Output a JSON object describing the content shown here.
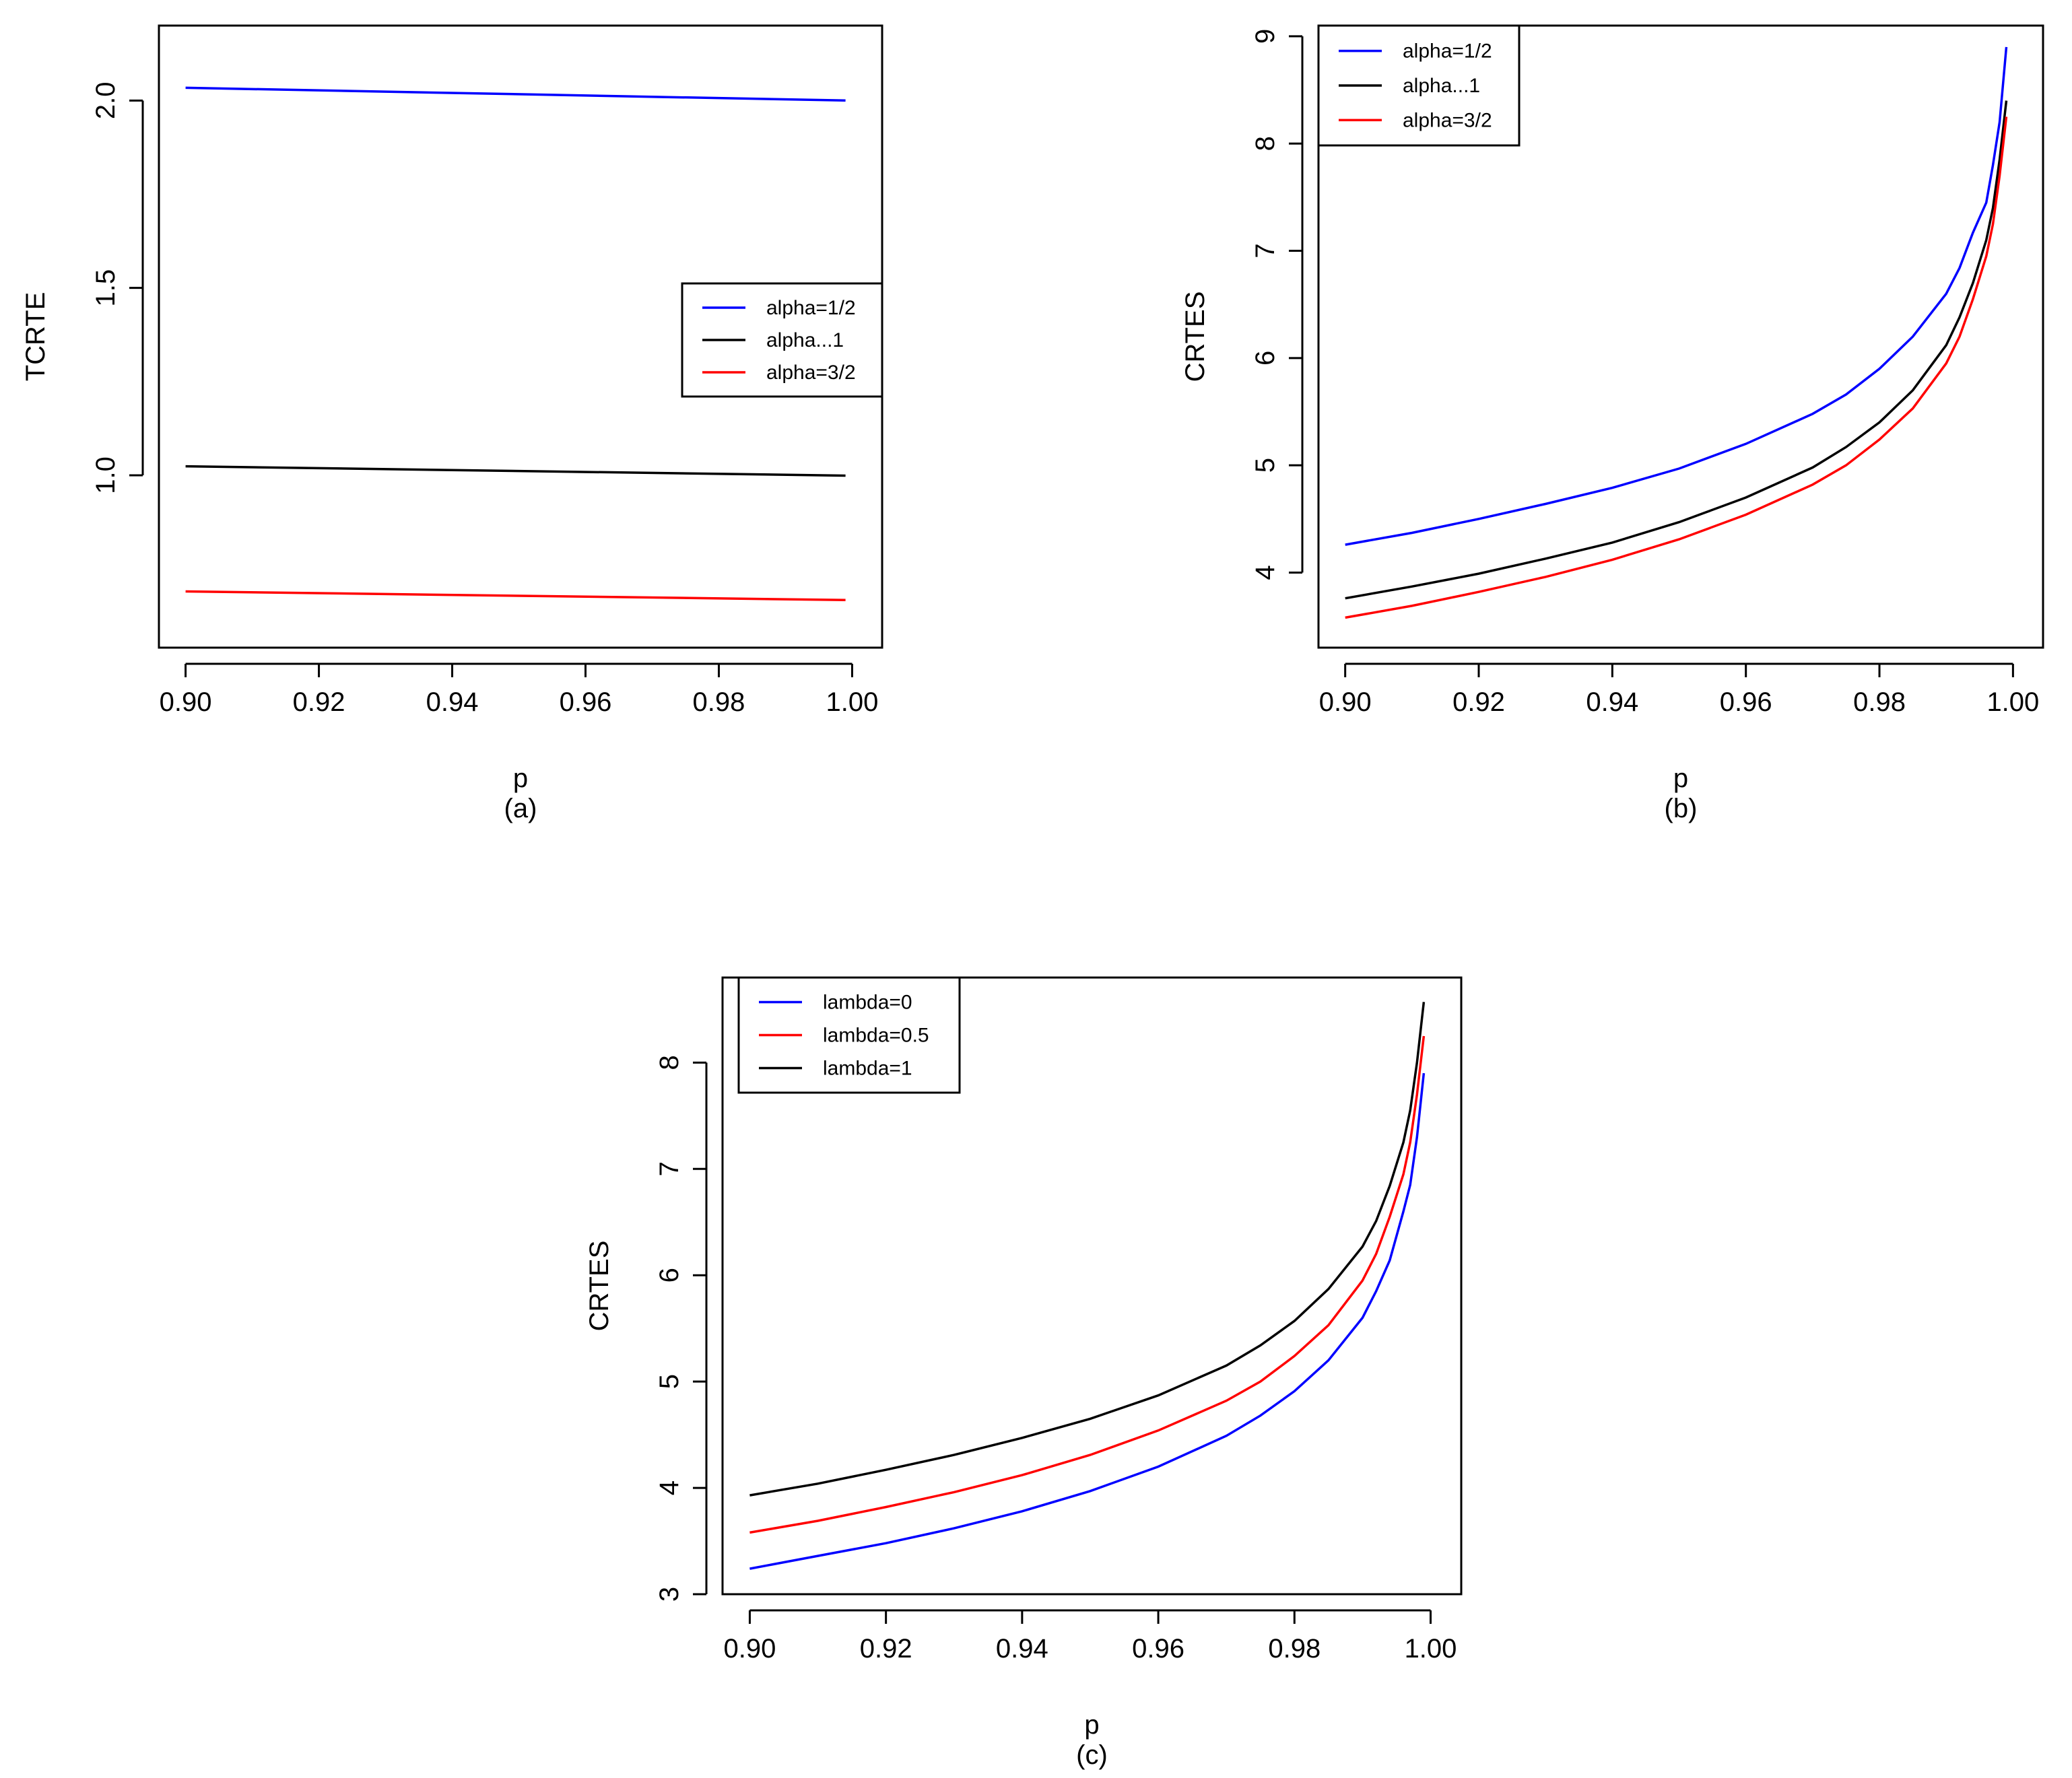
{
  "chart_data": [
    {
      "id": "a",
      "type": "line",
      "panel_label": "(a)",
      "xlabel": "p",
      "ylabel": "TCRTE",
      "xlim": [
        0.896,
        1.0045
      ],
      "ylim": [
        0.54,
        2.2
      ],
      "xticks": [
        0.9,
        0.92,
        0.94,
        0.96,
        0.98,
        1.0
      ],
      "xtick_labels": [
        "0.90",
        "0.92",
        "0.94",
        "0.96",
        "0.98",
        "1.00"
      ],
      "yticks": [
        1.0,
        1.5,
        2.0
      ],
      "ytick_labels": [
        "1.0",
        "1.5",
        "2.0"
      ],
      "legend_position": "right",
      "x": [
        0.9,
        0.999
      ],
      "series": [
        {
          "name": "alpha=1/2",
          "color": "#0000ff",
          "values": [
            2.034,
            2.0
          ]
        },
        {
          "name": "alpha...1",
          "color": "#000000",
          "values": [
            1.024,
            0.999
          ]
        },
        {
          "name": "alpha=3/2",
          "color": "#ff0000",
          "values": [
            0.69,
            0.667
          ]
        }
      ]
    },
    {
      "id": "b",
      "type": "line",
      "panel_label": "(b)",
      "xlabel": "p",
      "ylabel": "CRTES",
      "xlim": [
        0.896,
        1.0045
      ],
      "ylim": [
        3.3,
        9.1
      ],
      "xticks": [
        0.9,
        0.92,
        0.94,
        0.96,
        0.98,
        1.0
      ],
      "xtick_labels": [
        "0.90",
        "0.92",
        "0.94",
        "0.96",
        "0.98",
        "1.00"
      ],
      "yticks": [
        4,
        5,
        6,
        7,
        8,
        9
      ],
      "ytick_labels": [
        "4",
        "5",
        "6",
        "7",
        "8",
        "9"
      ],
      "legend_position": "top-left",
      "x": [
        0.9,
        0.91,
        0.92,
        0.93,
        0.94,
        0.95,
        0.96,
        0.97,
        0.975,
        0.98,
        0.985,
        0.99,
        0.992,
        0.994,
        0.996,
        0.997,
        0.998,
        0.999
      ],
      "series": [
        {
          "name": "alpha=1/2",
          "color": "#0000ff",
          "values": [
            4.26,
            4.37,
            4.5,
            4.64,
            4.79,
            4.97,
            5.2,
            5.48,
            5.66,
            5.9,
            6.2,
            6.6,
            6.84,
            7.17,
            7.45,
            7.8,
            8.2,
            8.9
          ]
        },
        {
          "name": "alpha...1",
          "color": "#000000",
          "values": [
            3.76,
            3.87,
            3.99,
            4.13,
            4.28,
            4.47,
            4.7,
            4.98,
            5.17,
            5.4,
            5.7,
            6.12,
            6.38,
            6.7,
            7.1,
            7.4,
            7.85,
            8.4
          ]
        },
        {
          "name": "alpha=3/2",
          "color": "#ff0000",
          "values": [
            3.58,
            3.69,
            3.82,
            3.96,
            4.12,
            4.31,
            4.54,
            4.82,
            5.0,
            5.24,
            5.53,
            5.95,
            6.2,
            6.55,
            6.95,
            7.25,
            7.7,
            8.25
          ]
        }
      ]
    },
    {
      "id": "c",
      "type": "line",
      "panel_label": "(c)",
      "xlabel": "p",
      "ylabel": "CRTES",
      "xlim": [
        0.896,
        1.0045
      ],
      "ylim": [
        3.0,
        8.8
      ],
      "xticks": [
        0.9,
        0.92,
        0.94,
        0.96,
        0.98,
        1.0
      ],
      "xtick_labels": [
        "0.90",
        "0.92",
        "0.94",
        "0.96",
        "0.98",
        "1.00"
      ],
      "yticks": [
        3,
        4,
        5,
        6,
        7,
        8
      ],
      "ytick_labels": [
        "3",
        "4",
        "5",
        "6",
        "7",
        "8"
      ],
      "legend_position": "top-left",
      "x": [
        0.9,
        0.91,
        0.92,
        0.93,
        0.94,
        0.95,
        0.96,
        0.97,
        0.975,
        0.98,
        0.985,
        0.99,
        0.992,
        0.994,
        0.996,
        0.997,
        0.998,
        0.999
      ],
      "series": [
        {
          "name": "lambda=0",
          "color": "#0000ff",
          "values": [
            3.24,
            3.36,
            3.48,
            3.62,
            3.78,
            3.97,
            4.2,
            4.49,
            4.68,
            4.91,
            5.2,
            5.6,
            5.85,
            6.14,
            6.6,
            6.85,
            7.3,
            7.9
          ]
        },
        {
          "name": "lambda=0.5",
          "color": "#ff0000",
          "values": [
            3.58,
            3.69,
            3.82,
            3.96,
            4.12,
            4.31,
            4.54,
            4.82,
            5.0,
            5.24,
            5.53,
            5.95,
            6.2,
            6.55,
            6.95,
            7.25,
            7.7,
            8.25
          ]
        },
        {
          "name": "lambda=1",
          "color": "#000000",
          "values": [
            3.93,
            4.04,
            4.17,
            4.31,
            4.47,
            4.65,
            4.87,
            5.15,
            5.34,
            5.57,
            5.87,
            6.27,
            6.51,
            6.84,
            7.25,
            7.55,
            8.0,
            8.57
          ]
        }
      ]
    }
  ]
}
